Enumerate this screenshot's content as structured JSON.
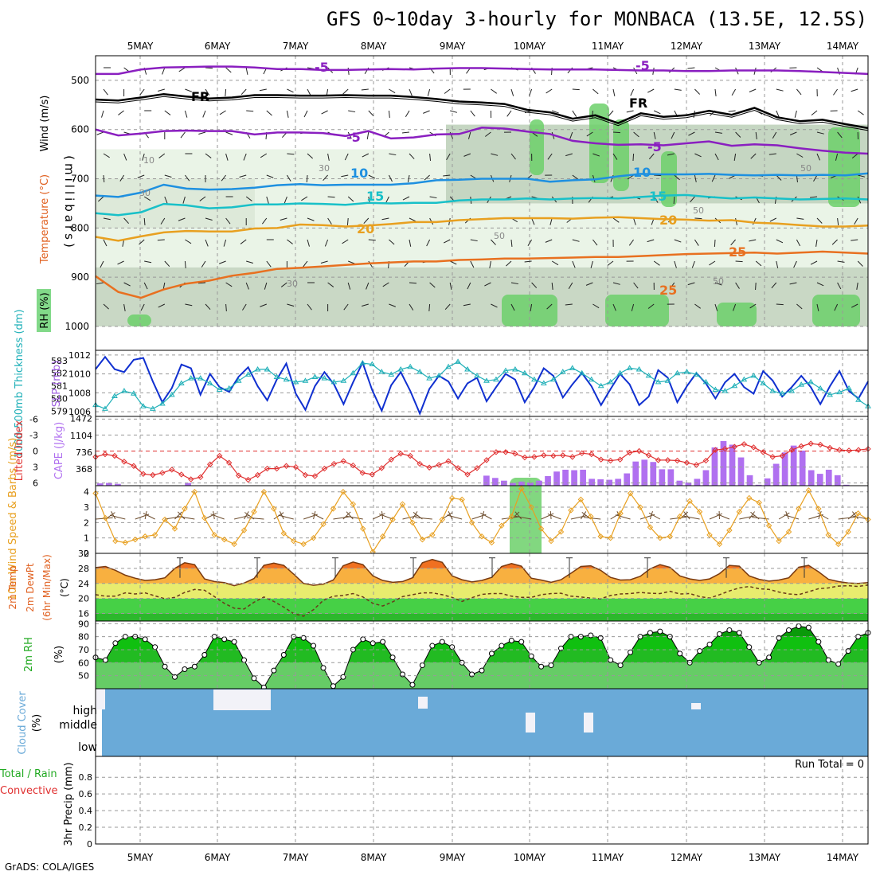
{
  "header": {
    "title": "GFS 0~10day 3-hourly for MONBACA (13.5E, 12.5S)",
    "credit": "GrADS: COLA/IGES"
  },
  "colors": {
    "purple": "#8a1fc0",
    "black": "#000000",
    "blue_iso": "#1e90e0",
    "cyan_iso": "#18c0c8",
    "orange_iso": "#e8a020",
    "dark_orange_iso": "#e87020",
    "slp": "#1030d0",
    "thickness": "#20b0b8",
    "lifted": "#e03030",
    "cape": "#b070f0",
    "wind": "#e8a020",
    "cloud": "#6aaad8",
    "rh_green": "#20c020"
  },
  "chart_data": [
    {
      "id": "upper-air",
      "type": "contour",
      "x_ticks": [
        "5MAY",
        "6MAY",
        "7MAY",
        "8MAY",
        "9MAY",
        "10MAY",
        "11MAY",
        "12MAY",
        "13MAY",
        "14MAY"
      ],
      "ylabel": "(millibars)",
      "legend": [
        "Wind (m/s)",
        "Temperature (°C)",
        "RH (%)"
      ],
      "yticks": [
        500,
        600,
        700,
        800,
        900,
        1000
      ],
      "ylim": [
        450,
        1000
      ],
      "isotherm_labels": [
        "-5",
        "FR",
        "-5",
        "10",
        "15",
        "20",
        "25"
      ],
      "rh_labels": [
        "10",
        "30",
        "50"
      ],
      "isotherms": [
        {
          "label": "-5",
          "color": "purple",
          "p": [
            487,
            487,
            478,
            474,
            473,
            472,
            472,
            474,
            477,
            477,
            479,
            479,
            478,
            477,
            478,
            476,
            475,
            475,
            476,
            477,
            478,
            478,
            478,
            479,
            480,
            480,
            481,
            481,
            480,
            480,
            480,
            481,
            483,
            485,
            487
          ]
        },
        {
          "label": "FR",
          "color": "black",
          "p": [
            539,
            541,
            535,
            528,
            533,
            537,
            535,
            530,
            530,
            531,
            531,
            530,
            531,
            531,
            534,
            538,
            543,
            545,
            548,
            560,
            565,
            578,
            571,
            587,
            567,
            574,
            571,
            562,
            570,
            556,
            575,
            583,
            580,
            589,
            597
          ]
        },
        {
          "label": "-5",
          "color": "purple",
          "p": [
            600,
            612,
            608,
            603,
            602,
            603,
            603,
            610,
            606,
            606,
            607,
            613,
            603,
            618,
            616,
            610,
            609,
            596,
            598,
            604,
            609,
            623,
            628,
            631,
            630,
            632,
            628,
            624,
            633,
            630,
            632,
            638,
            643,
            647,
            649
          ]
        },
        {
          "label": "10",
          "color": "blue_iso",
          "p": [
            734,
            737,
            728,
            712,
            720,
            722,
            721,
            718,
            713,
            711,
            713,
            712,
            712,
            712,
            709,
            703,
            702,
            700,
            700,
            700,
            706,
            703,
            701,
            695,
            690,
            691,
            691,
            690,
            692,
            693,
            692,
            693,
            692,
            693,
            689
          ]
        },
        {
          "label": "15",
          "color": "cyan_iso",
          "p": [
            770,
            774,
            768,
            751,
            754,
            760,
            758,
            752,
            752,
            750,
            751,
            753,
            749,
            750,
            749,
            749,
            744,
            742,
            742,
            740,
            742,
            740,
            739,
            740,
            737,
            734,
            733,
            737,
            740,
            738,
            740,
            742,
            741,
            740,
            742
          ]
        },
        {
          "label": "20",
          "color": "orange_iso",
          "p": [
            818,
            826,
            817,
            809,
            806,
            807,
            807,
            801,
            800,
            793,
            794,
            797,
            795,
            792,
            788,
            788,
            784,
            782,
            780,
            780,
            780,
            781,
            779,
            778,
            780,
            782,
            783,
            785,
            784,
            789,
            791,
            794,
            797,
            797,
            795
          ]
        },
        {
          "label": "25",
          "color": "dark_orange_iso",
          "p": [
            898,
            930,
            942,
            925,
            913,
            907,
            897,
            891,
            883,
            881,
            878,
            875,
            872,
            870,
            868,
            868,
            865,
            864,
            862,
            862,
            861,
            860,
            859,
            859,
            857,
            855,
            853,
            852,
            851,
            850,
            852,
            850,
            848,
            850,
            852
          ]
        }
      ]
    },
    {
      "id": "slp-thickness",
      "type": "line",
      "legend": [
        "1000-500mb Thickness (dm)",
        "SLP (mb)"
      ],
      "yticks_left": [
        "583",
        "582",
        "581",
        "580",
        "579"
      ],
      "yticks_right": [
        "1012",
        "1010",
        "1008",
        "1006"
      ],
      "ylim_slp": [
        1005.5,
        1012
      ],
      "slp": [
        1010.5,
        1011.8,
        1010.5,
        1010.2,
        1011.5,
        1011.7,
        1009.2,
        1007.0,
        1008.5,
        1011.0,
        1010.6,
        1007.8,
        1010.0,
        1008.6,
        1008.1,
        1009.7,
        1010.7,
        1008.7,
        1007.2,
        1009.4,
        1011.1,
        1007.9,
        1006.2,
        1008.7,
        1010.2,
        1008.9,
        1006.8,
        1009.1,
        1011.2,
        1008.3,
        1006.1,
        1008.8,
        1010.2,
        1008.2,
        1005.8,
        1008.4,
        1009.8,
        1009.2,
        1007.4,
        1009.0,
        1009.6,
        1007.1,
        1008.6,
        1010.0,
        1009.4,
        1007.0,
        1008.6,
        1010.6,
        1009.8,
        1007.5,
        1008.9,
        1010.1,
        1008.7,
        1006.7,
        1008.4,
        1010.0,
        1008.9,
        1006.7,
        1007.6,
        1010.4,
        1009.6,
        1007.0,
        1008.7,
        1010.1,
        1009.0,
        1007.4,
        1009.1,
        1010.0,
        1008.6,
        1007.9,
        1010.3,
        1009.3,
        1007.6,
        1008.6,
        1009.8,
        1008.6,
        1006.8,
        1008.7,
        1010.3,
        1008.2,
        1007.4,
        1009.2
      ],
      "thickness": [
        579.5,
        579.2,
        580.2,
        580.6,
        580.4,
        579.4,
        579.2,
        579.6,
        580.3,
        581.2,
        581.6,
        581.6,
        581.2,
        580.7,
        580.8,
        581.4,
        581.9,
        582.3,
        582.3,
        581.7,
        581.5,
        581.3,
        581.4,
        581.7,
        581.6,
        581.3,
        581.4,
        582.0,
        582.8,
        582.7,
        582.1,
        581.9,
        582.3,
        582.5,
        582.1,
        581.6,
        581.8,
        582.5,
        582.9,
        582.3,
        581.8,
        581.4,
        581.5,
        582.2,
        582.3,
        582.0,
        581.5,
        581.2,
        581.5,
        582.1,
        582.4,
        582.0,
        581.5,
        581.0,
        581.3,
        582.0,
        582.4,
        582.3,
        581.8,
        581.3,
        581.4,
        582.0,
        582.1,
        581.9,
        581.3,
        580.7,
        580.6,
        581.0,
        581.5,
        581.8,
        581.2,
        580.6,
        580.4,
        580.6,
        581.1,
        581.3,
        580.8,
        580.3,
        580.5,
        580.8,
        579.9,
        579.4
      ]
    },
    {
      "id": "lifted-cape",
      "type": "bar+line",
      "legend": [
        "Lifted Index",
        "CAPE (J/kg)"
      ],
      "yticks_left": [
        "-6",
        "-3",
        "0",
        "3",
        "6"
      ],
      "yticks_right": [
        "1472",
        "1104",
        "736",
        "368"
      ],
      "lifted_index": [
        1.1,
        0.6,
        0.9,
        2.0,
        2.8,
        4.3,
        4.5,
        4.1,
        3.5,
        4.4,
        5.3,
        4.9,
        2.5,
        0.9,
        2.2,
        4.6,
        5.4,
        4.5,
        3.3,
        3.3,
        2.8,
        3.0,
        4.5,
        4.7,
        3.3,
        2.4,
        1.9,
        2.7,
        4.1,
        4.4,
        3.2,
        1.6,
        0.5,
        0.9,
        2.4,
        3.1,
        2.6,
        1.9,
        3.2,
        4.4,
        3.2,
        1.7,
        0.2,
        0.2,
        0.5,
        1.2,
        1.1,
        0.8,
        0.9,
        0.8,
        1.1,
        0.4,
        0.6,
        1.6,
        1.8,
        1.6,
        0.3,
        0.0,
        0.8,
        1.7,
        1.7,
        1.8,
        2.2,
        2.6,
        1.8,
        -0.2,
        -0.4,
        -0.8,
        -1.3,
        -0.7,
        0.2,
        1.1,
        0.9,
        -0.2,
        -0.9,
        -1.4,
        -1.2,
        -0.6,
        -0.2,
        -0.1,
        -0.2,
        -0.4
      ],
      "cape": [
        50,
        60,
        40,
        0,
        0,
        0,
        0,
        0,
        0,
        0,
        60,
        0,
        0,
        0,
        0,
        0,
        0,
        0,
        0,
        0,
        0,
        0,
        0,
        0,
        0,
        0,
        0,
        0,
        0,
        0,
        0,
        0,
        0,
        0,
        0,
        0,
        0,
        0,
        0,
        0,
        0,
        0,
        0,
        0,
        220,
        170,
        110,
        60,
        90,
        70,
        110,
        210,
        310,
        350,
        340,
        350,
        150,
        140,
        130,
        150,
        270,
        530,
        570,
        520,
        360,
        360,
        110,
        70,
        150,
        340,
        840,
        980,
        900,
        620,
        230,
        20,
        160,
        480,
        730,
        880,
        770,
        340,
        260,
        350,
        230,
        20,
        0,
        0
      ]
    },
    {
      "id": "wind10m",
      "type": "line",
      "legend": [
        "10m Wind Speed & Barbs (m/s)"
      ],
      "yticks": [
        "4",
        "3",
        "2",
        "1",
        "0"
      ],
      "ylim": [
        0,
        4.4
      ],
      "speed": [
        3.9,
        2.3,
        0.8,
        0.7,
        0.9,
        1.1,
        1.2,
        2.2,
        1.6,
        2.9,
        4.0,
        2.3,
        1.2,
        0.9,
        0.6,
        1.5,
        2.7,
        4.0,
        2.9,
        1.3,
        0.8,
        0.6,
        1.0,
        1.9,
        2.9,
        4.0,
        3.2,
        1.6,
        0.1,
        1.1,
        2.2,
        3.2,
        2.0,
        0.9,
        1.2,
        2.2,
        3.6,
        3.5,
        2.0,
        1.1,
        0.7,
        1.8,
        2.4,
        4.2,
        3.0,
        1.6,
        0.8,
        1.4,
        2.8,
        3.5,
        2.4,
        1.1,
        1.0,
        2.6,
        3.9,
        3.0,
        1.7,
        1.0,
        1.1,
        2.4,
        3.4,
        2.7,
        1.2,
        0.6,
        1.5,
        2.7,
        3.6,
        3.3,
        1.8,
        0.8,
        1.4,
        2.9,
        4.1,
        2.9,
        1.2,
        0.6,
        1.4,
        2.6,
        2.2
      ]
    },
    {
      "id": "temp2m",
      "type": "area",
      "legend": [
        "2m Temp",
        "2m DewPt",
        "(6hr Min/Max)",
        "(°C)"
      ],
      "yticks": [
        "32",
        "28",
        "24",
        "20",
        "16"
      ],
      "ylim": [
        14,
        32
      ],
      "temp": [
        28.2,
        28.5,
        27.5,
        26.2,
        25.4,
        24.8,
        25.0,
        25.5,
        28.0,
        29.5,
        29.0,
        25.2,
        24.5,
        24.2,
        23.4,
        24.1,
        25.3,
        28.8,
        29.4,
        28.8,
        26.5,
        24.0,
        23.5,
        23.8,
        24.9,
        28.7,
        29.7,
        29.0,
        26.0,
        24.8,
        24.3,
        24.5,
        25.5,
        29.5,
        30.4,
        29.6,
        26.0,
        25.0,
        24.4,
        24.8,
        25.6,
        28.5,
        29.3,
        28.6,
        25.4,
        24.9,
        24.3,
        25.0,
        26.7,
        28.5,
        28.7,
        27.5,
        25.6,
        24.9,
        25.0,
        25.9,
        27.9,
        29.0,
        28.3,
        26.0,
        25.2,
        24.8,
        25.2,
        26.6,
        28.8,
        28.6,
        26.0,
        25.1,
        24.6,
        24.9,
        25.5,
        28.3,
        28.8,
        27.1,
        25.1,
        24.5,
        24.1,
        24.0,
        24.2
      ],
      "dewpt": [
        21.0,
        20.6,
        20.6,
        21.5,
        21.2,
        21.5,
        20.7,
        19.9,
        20.3,
        21.6,
        22.4,
        22.2,
        20.5,
        18.7,
        17.4,
        17.2,
        19.0,
        20.4,
        19.2,
        17.7,
        16.0,
        15.3,
        17.0,
        19.5,
        20.6,
        20.8,
        21.3,
        20.4,
        18.7,
        18.0,
        19.1,
        20.5,
        21.0,
        21.5,
        21.5,
        21.0,
        20.3,
        19.2,
        20.2,
        21.1,
        21.3,
        21.3,
        20.6,
        20.3,
        20.3,
        21.0,
        21.3,
        21.4,
        20.6,
        20.4,
        20.1,
        19.9,
        20.8,
        21.2,
        21.3,
        21.6,
        21.4,
        21.3,
        21.9,
        21.2,
        21.3,
        20.5,
        20.1,
        21.0,
        22.0,
        22.8,
        23.2,
        22.6,
        22.4,
        21.7,
        21.2,
        21.0,
        21.8,
        22.6,
        22.8,
        23.3,
        23.4,
        23.2,
        23.6
      ]
    },
    {
      "id": "rh2m",
      "type": "area",
      "legend": [
        "2m RH",
        "(%)"
      ],
      "yticks": [
        "90",
        "80",
        "70",
        "60",
        "50"
      ],
      "ylim": [
        40,
        92
      ],
      "rh": [
        64,
        62,
        75,
        80,
        80,
        78,
        72,
        57,
        49,
        55,
        57,
        66,
        80,
        78,
        76,
        62,
        48,
        41,
        54,
        66,
        80,
        79,
        73,
        56,
        42,
        49,
        70,
        78,
        75,
        76,
        64,
        51,
        43,
        58,
        73,
        76,
        72,
        60,
        51,
        54,
        67,
        73,
        77,
        76,
        65,
        57,
        58,
        71,
        80,
        80,
        81,
        79,
        62,
        58,
        68,
        80,
        83,
        84,
        80,
        67,
        60,
        69,
        74,
        82,
        85,
        83,
        72,
        60,
        64,
        79,
        85,
        88,
        87,
        76,
        62,
        59,
        69,
        80,
        83
      ]
    },
    {
      "id": "cloud",
      "type": "heatmap",
      "legend": [
        "Cloud Cover",
        "(%)"
      ],
      "ylabels": [
        "high",
        "middle",
        "low"
      ]
    },
    {
      "id": "precip",
      "type": "bar",
      "legend": [
        "Total / Rain",
        "Convective",
        "3hr Precip (mm)"
      ],
      "yticks": [
        "0.8",
        "0.6",
        "0.4",
        "0.2",
        "0"
      ],
      "ylim": [
        0,
        1
      ],
      "run_total": "Run Total = 0",
      "values": []
    }
  ]
}
